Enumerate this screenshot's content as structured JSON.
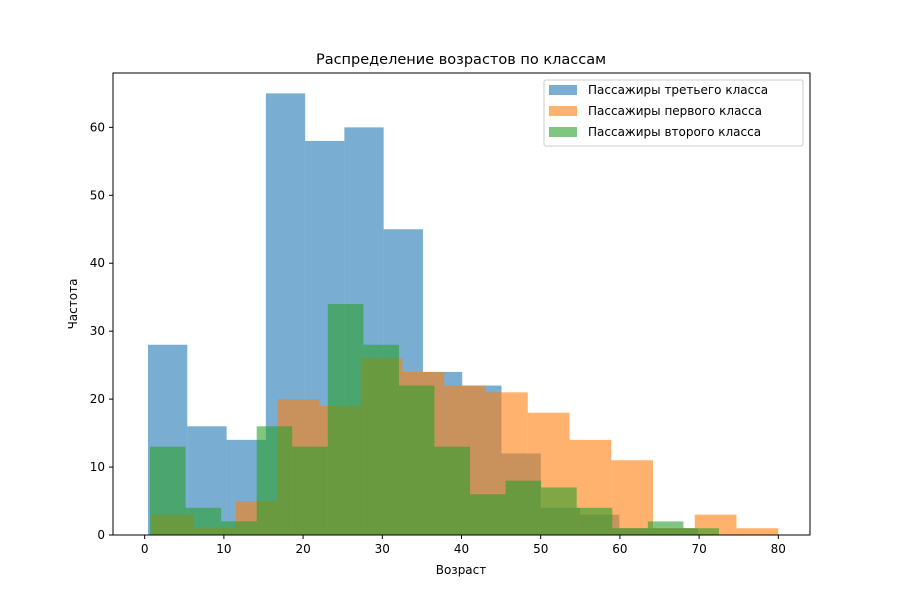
{
  "chart_data": {
    "type": "histogram",
    "title": "Распределение возрастов по классам",
    "xlabel": "Возраст",
    "ylabel": "Частота",
    "xlim": [
      -4,
      84
    ],
    "ylim": [
      0,
      68
    ],
    "xticks": [
      0,
      10,
      20,
      30,
      40,
      50,
      60,
      70,
      80
    ],
    "yticks": [
      0,
      10,
      20,
      30,
      40,
      50,
      60
    ],
    "grid": false,
    "legend_position": "top-right",
    "series": [
      {
        "name": "Пассажиры третьего класса",
        "color": "#1f77b4",
        "opacity": 0.6,
        "bin_edges": [
          0.42,
          5.38,
          10.34,
          15.3,
          20.26,
          25.21,
          30.17,
          35.13,
          40.09,
          45.05,
          50.01,
          54.97,
          59.93,
          64.89,
          69.85,
          74.81
        ],
        "counts": [
          28,
          16,
          14,
          65,
          58,
          60,
          45,
          24,
          22,
          12,
          4,
          3,
          1,
          1,
          0
        ]
      },
      {
        "name": "Пассажиры первого класса",
        "color": "#ff7f0e",
        "opacity": 0.6,
        "bin_edges": [
          0.92,
          6.19,
          11.46,
          16.74,
          22.01,
          27.28,
          32.55,
          37.82,
          43.09,
          48.37,
          53.64,
          58.91,
          64.18,
          69.45,
          74.72,
          80.0
        ],
        "counts": [
          3,
          1,
          5,
          20,
          19,
          26,
          24,
          22,
          21,
          18,
          14,
          11,
          1,
          3,
          1
        ]
      },
      {
        "name": "Пассажиры второго класса",
        "color": "#2ca02c",
        "opacity": 0.6,
        "bin_edges": [
          0.67,
          5.16,
          9.65,
          14.14,
          18.63,
          23.12,
          27.61,
          32.1,
          36.59,
          41.08,
          45.57,
          50.06,
          54.55,
          59.04,
          63.53,
          68.02,
          72.51
        ],
        "counts": [
          13,
          4,
          2,
          16,
          13,
          34,
          28,
          22,
          13,
          6,
          8,
          7,
          4,
          1,
          2,
          1
        ]
      }
    ]
  }
}
